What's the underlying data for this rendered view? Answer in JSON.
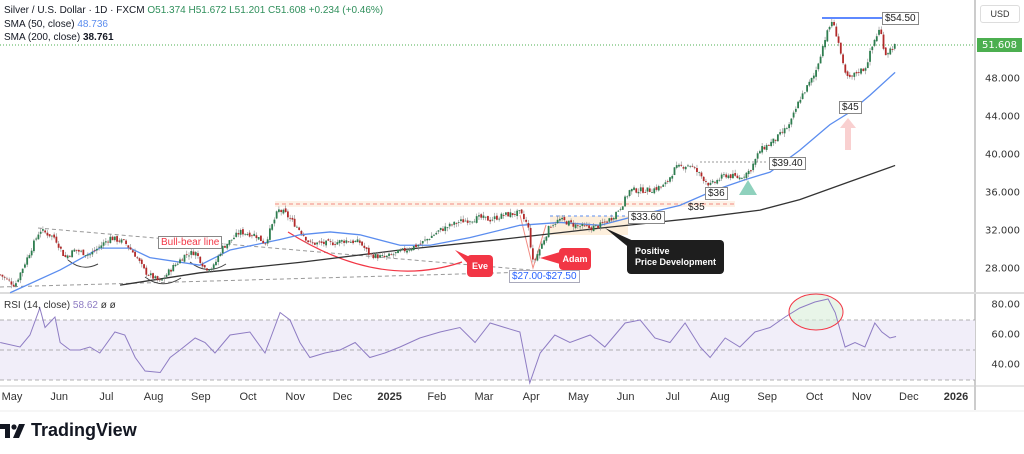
{
  "header": {
    "symbol": "Silver / U.S. Dollar · 1D · FXCM",
    "open": "O51.374",
    "high": "H51.672",
    "low": "L51.201",
    "close": "C51.608",
    "change": "+0.234 (+0.46%)",
    "sma50_label": "SMA (50, close)",
    "sma50_value": "48.736",
    "sma200_label": "SMA (200, close)",
    "sma200_value": "38.761"
  },
  "currency": "USD",
  "current_price": "51.608",
  "rsi_header": {
    "label": "RSI (14, close)",
    "value": "58.62",
    "extra": "ø ø"
  },
  "annotations": {
    "top": "$54.50",
    "low45": "$45",
    "level3940": "$39.40",
    "level36": "$36",
    "level35": "$35",
    "level3360": "$33.60",
    "positive_1": "Positive",
    "positive_2": "Price Development",
    "adam": "Adam",
    "eve": "Eve",
    "range": "$27.00-$27.50",
    "bullbear": "Bull-bear line"
  },
  "logo": "TradingView",
  "colors": {
    "up": "#2e7d4f",
    "down": "#b22a2a",
    "sma50": "#5b8def",
    "sma200": "#333333",
    "rsi": "#8e7cc3",
    "accent_red": "#f23645",
    "price_tag": "#4caf50"
  },
  "chart_data": {
    "type": "candlestick",
    "title": "Silver / U.S. Dollar · 1D · FXCM",
    "x_unit": "months since 2024-05-01",
    "x_ticks": [
      "May",
      "Jun",
      "Jul",
      "Aug",
      "Sep",
      "Oct",
      "Nov",
      "Dec",
      "2025",
      "Feb",
      "Mar",
      "Apr",
      "May",
      "Jun",
      "Jul",
      "Aug",
      "Sep",
      "Oct",
      "Nov",
      "Dec",
      "2026"
    ],
    "y_ticks": [
      "48.000",
      "44.000",
      "40.000",
      "36.000",
      "32.000",
      "28.000"
    ],
    "ylim": [
      22,
      56
    ],
    "price_path": [
      [
        -0.25,
        27.4
      ],
      [
        0.06,
        26.3
      ],
      [
        0.59,
        32.1
      ],
      [
        0.91,
        31.3
      ],
      [
        1.12,
        29.2
      ],
      [
        1.33,
        30.0
      ],
      [
        1.65,
        29.5
      ],
      [
        2.08,
        31.3
      ],
      [
        2.39,
        30.8
      ],
      [
        2.61,
        29.5
      ],
      [
        2.82,
        27.7
      ],
      [
        3.14,
        26.6
      ],
      [
        3.35,
        27.9
      ],
      [
        3.67,
        29.5
      ],
      [
        3.88,
        29.8
      ],
      [
        4.09,
        28.1
      ],
      [
        4.26,
        28.1
      ],
      [
        4.45,
        30.2
      ],
      [
        4.83,
        31.9
      ],
      [
        5.15,
        31.6
      ],
      [
        5.36,
        30.7
      ],
      [
        5.64,
        34.2
      ],
      [
        5.78,
        33.9
      ],
      [
        6.1,
        32.1
      ],
      [
        6.31,
        30.7
      ],
      [
        6.74,
        30.7
      ],
      [
        7.06,
        31.0
      ],
      [
        7.37,
        30.8
      ],
      [
        7.58,
        29.5
      ],
      [
        7.9,
        29.2
      ],
      [
        8.22,
        29.8
      ],
      [
        8.64,
        30.6
      ],
      [
        9.07,
        32.1
      ],
      [
        9.49,
        33.0
      ],
      [
        9.92,
        33.4
      ],
      [
        10.13,
        33.2
      ],
      [
        10.44,
        33.7
      ],
      [
        10.76,
        33.9
      ],
      [
        10.93,
        32.6
      ],
      [
        11.04,
        28.6
      ],
      [
        11.19,
        30.2
      ],
      [
        11.4,
        32.6
      ],
      [
        11.61,
        33.2
      ],
      [
        11.93,
        32.6
      ],
      [
        12.25,
        32.3
      ],
      [
        12.46,
        32.6
      ],
      [
        12.71,
        33.4
      ],
      [
        12.92,
        34.7
      ],
      [
        13.09,
        36.3
      ],
      [
        13.52,
        36.3
      ],
      [
        13.83,
        36.8
      ],
      [
        14.05,
        38.6
      ],
      [
        14.36,
        39.0
      ],
      [
        14.58,
        37.9
      ],
      [
        14.79,
        36.8
      ],
      [
        15.11,
        37.9
      ],
      [
        15.42,
        37.6
      ],
      [
        15.64,
        38.4
      ],
      [
        15.85,
        40.5
      ],
      [
        16.17,
        41.6
      ],
      [
        16.48,
        43.2
      ],
      [
        16.69,
        45.9
      ],
      [
        17.01,
        48.5
      ],
      [
        17.22,
        52.2
      ],
      [
        17.37,
        54.1
      ],
      [
        17.5,
        52.2
      ],
      [
        17.64,
        48.5
      ],
      [
        17.75,
        48.0
      ],
      [
        17.92,
        48.8
      ],
      [
        18.07,
        49.1
      ],
      [
        18.28,
        52.2
      ],
      [
        18.39,
        53.3
      ],
      [
        18.5,
        50.6
      ],
      [
        18.6,
        51.1
      ],
      [
        18.73,
        51.6
      ]
    ],
    "sma50": [
      [
        -0.04,
        25.5
      ],
      [
        1.02,
        27.9
      ],
      [
        1.86,
        30.2
      ],
      [
        2.5,
        30.2
      ],
      [
        2.92,
        29.2
      ],
      [
        3.98,
        28.4
      ],
      [
        4.62,
        30.0
      ],
      [
        5.68,
        31.1
      ],
      [
        6.1,
        31.6
      ],
      [
        6.74,
        31.9
      ],
      [
        7.37,
        31.6
      ],
      [
        8.22,
        30.5
      ],
      [
        8.86,
        30.5
      ],
      [
        9.7,
        31.3
      ],
      [
        10.76,
        32.6
      ],
      [
        11.61,
        32.9
      ],
      [
        12.46,
        32.6
      ],
      [
        13.31,
        33.7
      ],
      [
        14.15,
        34.7
      ],
      [
        14.89,
        36.3
      ],
      [
        15.53,
        37.4
      ],
      [
        16.06,
        38.2
      ],
      [
        16.69,
        40.5
      ],
      [
        17.33,
        43.2
      ],
      [
        17.75,
        44.5
      ],
      [
        18.18,
        46.3
      ],
      [
        18.71,
        48.7
      ]
    ],
    "sma200": [
      [
        2.29,
        26.3
      ],
      [
        3.98,
        27.6
      ],
      [
        6.1,
        28.7
      ],
      [
        8.22,
        30.0
      ],
      [
        10.34,
        31.1
      ],
      [
        12.46,
        32.3
      ],
      [
        14.58,
        33.4
      ],
      [
        15.85,
        34.2
      ],
      [
        16.69,
        35.3
      ],
      [
        17.75,
        37.2
      ],
      [
        18.71,
        38.9
      ]
    ],
    "rsi": {
      "y_ticks": [
        "80.00",
        "60.00",
        "40.00"
      ],
      "bands": [
        70,
        50,
        30
      ],
      "values": [
        [
          -0.25,
          55
        ],
        [
          0.17,
          52
        ],
        [
          0.38,
          60
        ],
        [
          0.59,
          78
        ],
        [
          0.7,
          65
        ],
        [
          0.91,
          72
        ],
        [
          1.02,
          55
        ],
        [
          1.23,
          50
        ],
        [
          1.44,
          50
        ],
        [
          1.65,
          52
        ],
        [
          1.86,
          48
        ],
        [
          2.18,
          62
        ],
        [
          2.39,
          60
        ],
        [
          2.61,
          45
        ],
        [
          2.82,
          36
        ],
        [
          3.14,
          35
        ],
        [
          3.35,
          45
        ],
        [
          3.56,
          50
        ],
        [
          3.88,
          58
        ],
        [
          4.09,
          55
        ],
        [
          4.3,
          48
        ],
        [
          4.62,
          60
        ],
        [
          5.04,
          62
        ],
        [
          5.36,
          48
        ],
        [
          5.68,
          75
        ],
        [
          5.89,
          70
        ],
        [
          6.1,
          55
        ],
        [
          6.31,
          45
        ],
        [
          6.63,
          48
        ],
        [
          6.95,
          50
        ],
        [
          7.27,
          55
        ],
        [
          7.58,
          45
        ],
        [
          7.9,
          48
        ],
        [
          8.22,
          52
        ],
        [
          8.64,
          58
        ],
        [
          9.07,
          62
        ],
        [
          9.49,
          65
        ],
        [
          9.81,
          55
        ],
        [
          10.13,
          68
        ],
        [
          10.44,
          65
        ],
        [
          10.76,
          62
        ],
        [
          10.97,
          28
        ],
        [
          11.19,
          48
        ],
        [
          11.5,
          60
        ],
        [
          11.82,
          55
        ],
        [
          12.25,
          60
        ],
        [
          12.56,
          52
        ],
        [
          12.99,
          68
        ],
        [
          13.31,
          70
        ],
        [
          13.62,
          58
        ],
        [
          13.94,
          55
        ],
        [
          14.26,
          68
        ],
        [
          14.58,
          52
        ],
        [
          14.79,
          45
        ],
        [
          15.11,
          58
        ],
        [
          15.42,
          52
        ],
        [
          15.74,
          62
        ],
        [
          16.06,
          65
        ],
        [
          16.38,
          72
        ],
        [
          16.69,
          78
        ],
        [
          17.01,
          82
        ],
        [
          17.29,
          84
        ],
        [
          17.44,
          75
        ],
        [
          17.65,
          52
        ],
        [
          17.86,
          55
        ],
        [
          18.07,
          52
        ],
        [
          18.28,
          68
        ],
        [
          18.43,
          62
        ],
        [
          18.6,
          58
        ],
        [
          18.73,
          59
        ]
      ]
    }
  }
}
